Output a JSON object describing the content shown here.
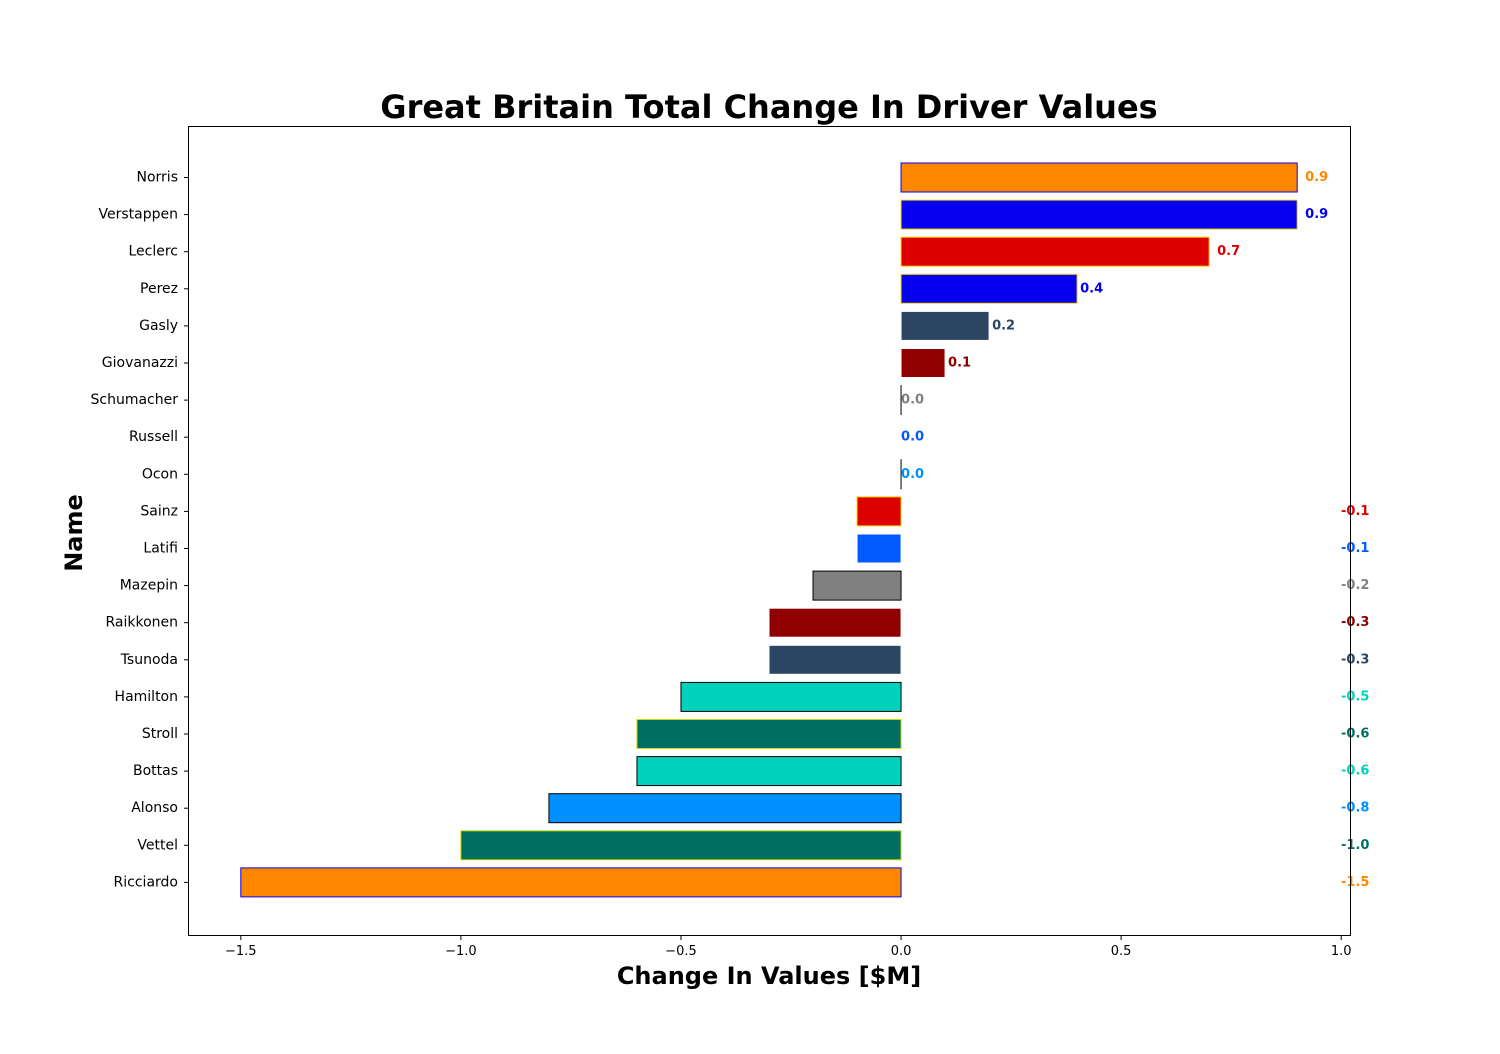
{
  "chart_data": {
    "type": "bar",
    "orientation": "horizontal",
    "title": "Great Britain Total Change In Driver Values",
    "xlabel": "Change In Values [$M]",
    "ylabel": "Name",
    "xlim": [
      -1.62,
      1.02
    ],
    "xticks": [
      -1.5,
      -1.0,
      -0.5,
      0.0,
      0.5,
      1.0
    ],
    "xtick_labels": [
      "−1.5",
      "−1.0",
      "−0.5",
      "0.0",
      "0.5",
      "1.0"
    ],
    "grid": false,
    "legend": "none",
    "bars": [
      {
        "name": "Norris",
        "value": 0.9,
        "label": "0.9",
        "fill": "#FF8700",
        "edge": "#0600EF",
        "label_color": "#FF8700"
      },
      {
        "name": "Verstappen",
        "value": 0.9,
        "label": "0.9",
        "fill": "#0600EF",
        "edge": "#FFD700",
        "label_color": "#0600EF"
      },
      {
        "name": "Leclerc",
        "value": 0.7,
        "label": "0.7",
        "fill": "#DC0000",
        "edge": "#FFD700",
        "label_color": "#DC0000"
      },
      {
        "name": "Perez",
        "value": 0.4,
        "label": "0.4",
        "fill": "#0600EF",
        "edge": "#FFD700",
        "label_color": "#0600EF"
      },
      {
        "name": "Gasly",
        "value": 0.2,
        "label": "0.2",
        "fill": "#2B4562",
        "edge": "#FFFFFF",
        "label_color": "#2B4562"
      },
      {
        "name": "Giovanazzi",
        "value": 0.1,
        "label": "0.1",
        "fill": "#900000",
        "edge": "#FFFFFF",
        "label_color": "#900000"
      },
      {
        "name": "Schumacher",
        "value": 0.0,
        "label": "0.0",
        "fill": "#808080",
        "edge": "#000000",
        "label_color": "#808080"
      },
      {
        "name": "Russell",
        "value": 0.0,
        "label": "0.0",
        "fill": "#005AFF",
        "edge": "#FFFFFF",
        "label_color": "#005AFF"
      },
      {
        "name": "Ocon",
        "value": 0.0,
        "label": "0.0",
        "fill": "#0090FF",
        "edge": "#000000",
        "label_color": "#0090FF"
      },
      {
        "name": "Sainz",
        "value": -0.1,
        "label": "-0.1",
        "fill": "#DC0000",
        "edge": "#FFD700",
        "label_color": "#DC0000"
      },
      {
        "name": "Latifi",
        "value": -0.1,
        "label": "-0.1",
        "fill": "#005AFF",
        "edge": "#FFFFFF",
        "label_color": "#005AFF"
      },
      {
        "name": "Mazepin",
        "value": -0.2,
        "label": "-0.2",
        "fill": "#808080",
        "edge": "#000000",
        "label_color": "#808080"
      },
      {
        "name": "Raikkonen",
        "value": -0.3,
        "label": "-0.3",
        "fill": "#900000",
        "edge": "#FFFFFF",
        "label_color": "#900000"
      },
      {
        "name": "Tsunoda",
        "value": -0.3,
        "label": "-0.3",
        "fill": "#2B4562",
        "edge": "#FFFFFF",
        "label_color": "#2B4562"
      },
      {
        "name": "Hamilton",
        "value": -0.5,
        "label": "-0.5",
        "fill": "#00D2BE",
        "edge": "#000000",
        "label_color": "#00D2BE"
      },
      {
        "name": "Stroll",
        "value": -0.6,
        "label": "-0.6",
        "fill": "#006F62",
        "edge": "#CEDC00",
        "label_color": "#006F62"
      },
      {
        "name": "Bottas",
        "value": -0.6,
        "label": "-0.6",
        "fill": "#00D2BE",
        "edge": "#000000",
        "label_color": "#00D2BE"
      },
      {
        "name": "Alonso",
        "value": -0.8,
        "label": "-0.8",
        "fill": "#0090FF",
        "edge": "#000000",
        "label_color": "#0090FF"
      },
      {
        "name": "Vettel",
        "value": -1.0,
        "label": "-1.0",
        "fill": "#006F62",
        "edge": "#CEDC00",
        "label_color": "#006F62"
      },
      {
        "name": "Ricciardo",
        "value": -1.5,
        "label": "-1.5",
        "fill": "#FF8700",
        "edge": "#0600EF",
        "label_color": "#FF8700"
      }
    ]
  }
}
